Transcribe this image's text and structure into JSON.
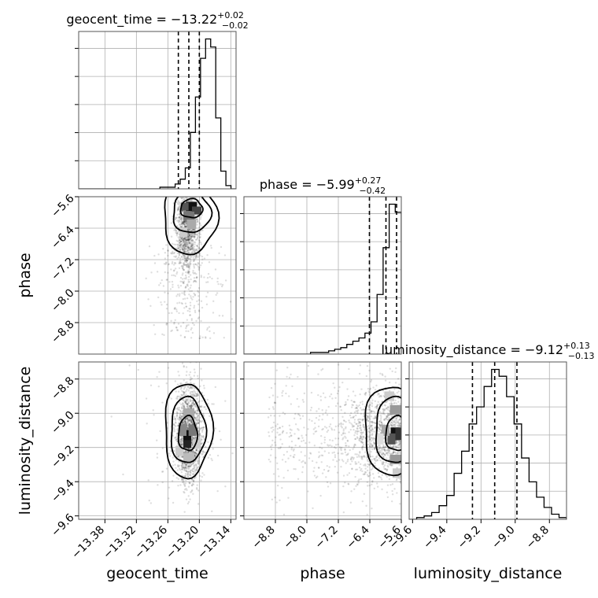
{
  "chart_data": {
    "type": "corner",
    "parameters": [
      {
        "key": "geocent_time",
        "label": "geocent_time",
        "median": -13.22,
        "err_plus": 0.02,
        "err_minus": 0.02,
        "ticks": [
          "−13.38",
          "−13.32",
          "−13.26",
          "−13.20",
          "−13.14"
        ],
        "tick_values": [
          -13.38,
          -13.32,
          -13.26,
          -13.2,
          -13.14
        ],
        "range": [
          -13.43,
          -13.13
        ],
        "quantiles": [
          -13.24,
          -13.22,
          -13.2
        ]
      },
      {
        "key": "phase",
        "label": "phase",
        "median": -5.99,
        "err_plus": 0.27,
        "err_minus": 0.42,
        "ticks": [
          "−8.8",
          "−8.0",
          "−7.2",
          "−6.4",
          "−5.6"
        ],
        "tick_values": [
          -8.8,
          -8.0,
          -7.2,
          -6.4,
          -5.6
        ],
        "range": [
          -9.6,
          -5.6
        ],
        "quantiles": [
          -6.41,
          -5.99,
          -5.72
        ]
      },
      {
        "key": "luminosity_distance",
        "label": "luminosity_distance",
        "median": -9.12,
        "err_plus": 0.13,
        "err_minus": 0.13,
        "ticks": [
          "−9.6",
          "−9.4",
          "−9.2",
          "−9.0",
          "−8.8"
        ],
        "tick_values": [
          -9.6,
          -9.4,
          -9.2,
          -9.0,
          -8.8
        ],
        "range": [
          -9.62,
          -8.7
        ],
        "quantiles": [
          -9.25,
          -9.12,
          -8.99
        ]
      }
    ],
    "histograms": {
      "geocent_time": [
        0,
        0,
        0,
        0,
        0,
        0,
        0,
        0,
        0,
        0,
        0,
        0,
        0,
        0,
        0,
        0,
        1,
        1,
        1,
        3,
        6,
        13,
        35,
        57,
        81,
        93,
        88,
        44,
        11,
        2,
        0
      ],
      "phase": [
        0,
        0,
        0,
        0,
        0,
        0,
        0,
        0,
        0,
        0,
        0,
        1,
        1,
        1,
        2,
        3,
        4,
        6,
        8,
        10,
        13,
        20,
        37,
        66,
        93,
        88
      ],
      "luminosity_distance": [
        0,
        1,
        2,
        4,
        8,
        14,
        27,
        40,
        56,
        66,
        78,
        88,
        84,
        72,
        56,
        36,
        22,
        13,
        7,
        3,
        1
      ]
    }
  }
}
